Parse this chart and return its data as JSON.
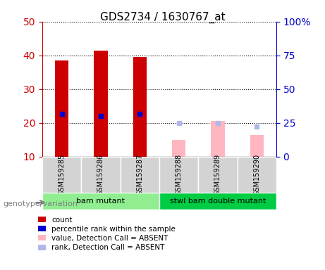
{
  "title": "GDS2734 / 1630767_at",
  "samples": [
    "GSM159285",
    "GSM159286",
    "GSM159287",
    "GSM159288",
    "GSM159289",
    "GSM159290"
  ],
  "count_values": [
    38.5,
    41.5,
    39.5,
    null,
    null,
    null
  ],
  "rank_values": [
    31.5,
    30.0,
    31.5,
    null,
    null,
    null
  ],
  "absent_count_values": [
    null,
    null,
    null,
    15.0,
    20.5,
    16.5
  ],
  "absent_rank_values": [
    null,
    null,
    null,
    25.0,
    25.0,
    22.5
  ],
  "ylim_left": [
    10,
    50
  ],
  "ylim_right": [
    0,
    100
  ],
  "yticks_left": [
    10,
    20,
    30,
    40,
    50
  ],
  "yticks_right": [
    0,
    25,
    50,
    75,
    100
  ],
  "ytick_labels_right": [
    "0",
    "25",
    "50",
    "75",
    "100%"
  ],
  "bar_width": 0.35,
  "group1_label": "bam mutant",
  "group2_label": "stwl bam double mutant",
  "group1_color": "#90ee90",
  "group2_color": "#00cc44",
  "sample_box_color": "#d3d3d3",
  "count_color": "#cc0000",
  "rank_color": "#0000cc",
  "absent_count_color": "#ffb6c1",
  "absent_rank_color": "#b0b8e8",
  "legend_items": [
    "count",
    "percentile rank within the sample",
    "value, Detection Call = ABSENT",
    "rank, Detection Call = ABSENT"
  ],
  "legend_colors": [
    "#cc0000",
    "#0000cc",
    "#ffb6c1",
    "#b0b8e8"
  ],
  "genotype_label": "genotype/variation"
}
